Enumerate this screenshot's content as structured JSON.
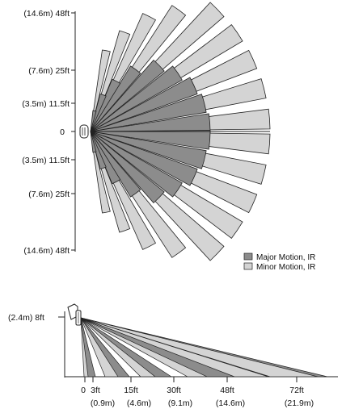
{
  "top_view": {
    "y_axis_labels": [
      "(14.6m) 48ft",
      "(7.6m) 25ft",
      "(3.5m) 11.5ft",
      "0",
      "(3.5m) 11.5ft",
      "(7.6m) 25ft",
      "(14.6m) 48ft"
    ],
    "legend": [
      {
        "label": "Major Motion, IR",
        "color": "#8c8c8c"
      },
      {
        "label": "Minor Motion, IR",
        "color": "#d4d4d4"
      }
    ]
  },
  "side_view": {
    "height_label": "(2.4m) 8ft",
    "x_tick_labels_ft": [
      "0",
      "3ft",
      "15ft",
      "30ft",
      "48ft",
      "72ft"
    ],
    "x_tick_labels_m": [
      "(0.9m)",
      "(4.6m)",
      "(9.1m)",
      "(14.6m)",
      "(21.9m)"
    ]
  },
  "colors": {
    "major_motion": "#8c8c8c",
    "minor_motion": "#d4d4d4",
    "outline": "#222222"
  }
}
